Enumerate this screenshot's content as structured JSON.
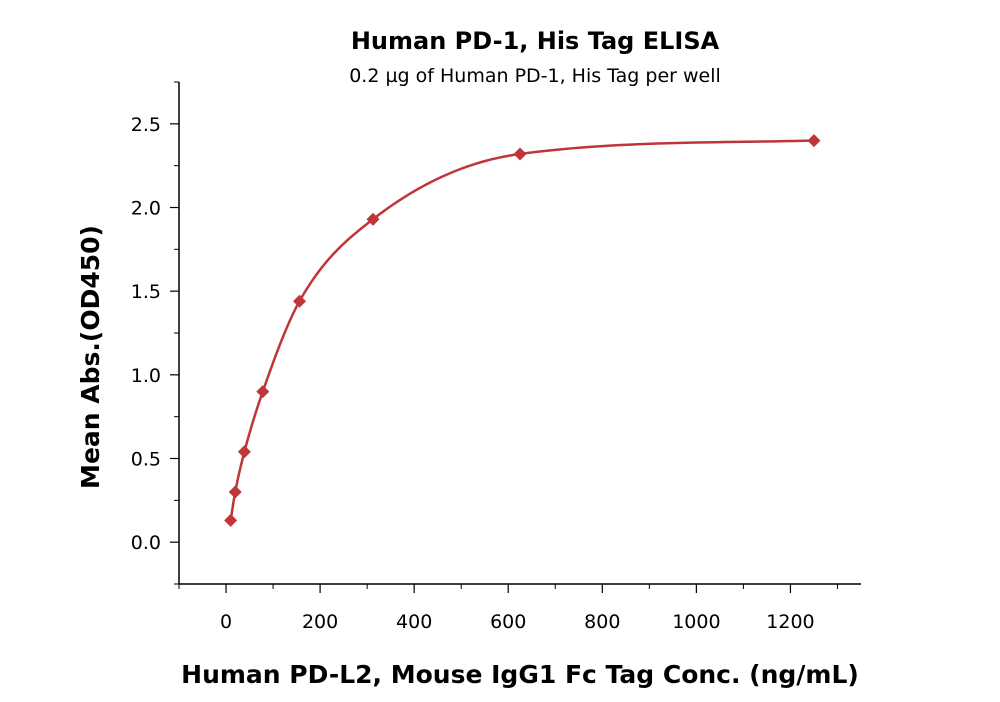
{
  "chart_data": {
    "type": "scatter",
    "title": "Human PD-1, His Tag ELISA",
    "subtitle": "0.2 µg of Human PD-1, His Tag per well",
    "xlabel": "Human PD-L2, Mouse IgG1 Fc Tag Conc. (ng/mL)",
    "ylabel": "Mean Abs.(OD450)",
    "xlim": [
      -100,
      1350
    ],
    "ylim": [
      -0.25,
      2.75
    ],
    "xticks": [
      0,
      200,
      400,
      600,
      800,
      1000,
      1200
    ],
    "xtick_labels": [
      "0",
      "200",
      "400",
      "600",
      "800",
      "1000",
      "1200"
    ],
    "yticks": [
      0.0,
      0.5,
      1.0,
      1.5,
      2.0,
      2.5
    ],
    "ytick_labels": [
      "0.0",
      "0.5",
      "1.0",
      "1.5",
      "2.0",
      "2.5"
    ],
    "grid": false,
    "legend": "none",
    "color": "#c0353a",
    "series": [
      {
        "x": [
          9.77,
          19.53,
          39.06,
          78.13,
          156.25,
          312.5,
          625,
          1250
        ],
        "y": [
          0.13,
          0.3,
          0.54,
          0.9,
          1.44,
          1.93,
          2.32,
          2.4
        ]
      }
    ]
  }
}
